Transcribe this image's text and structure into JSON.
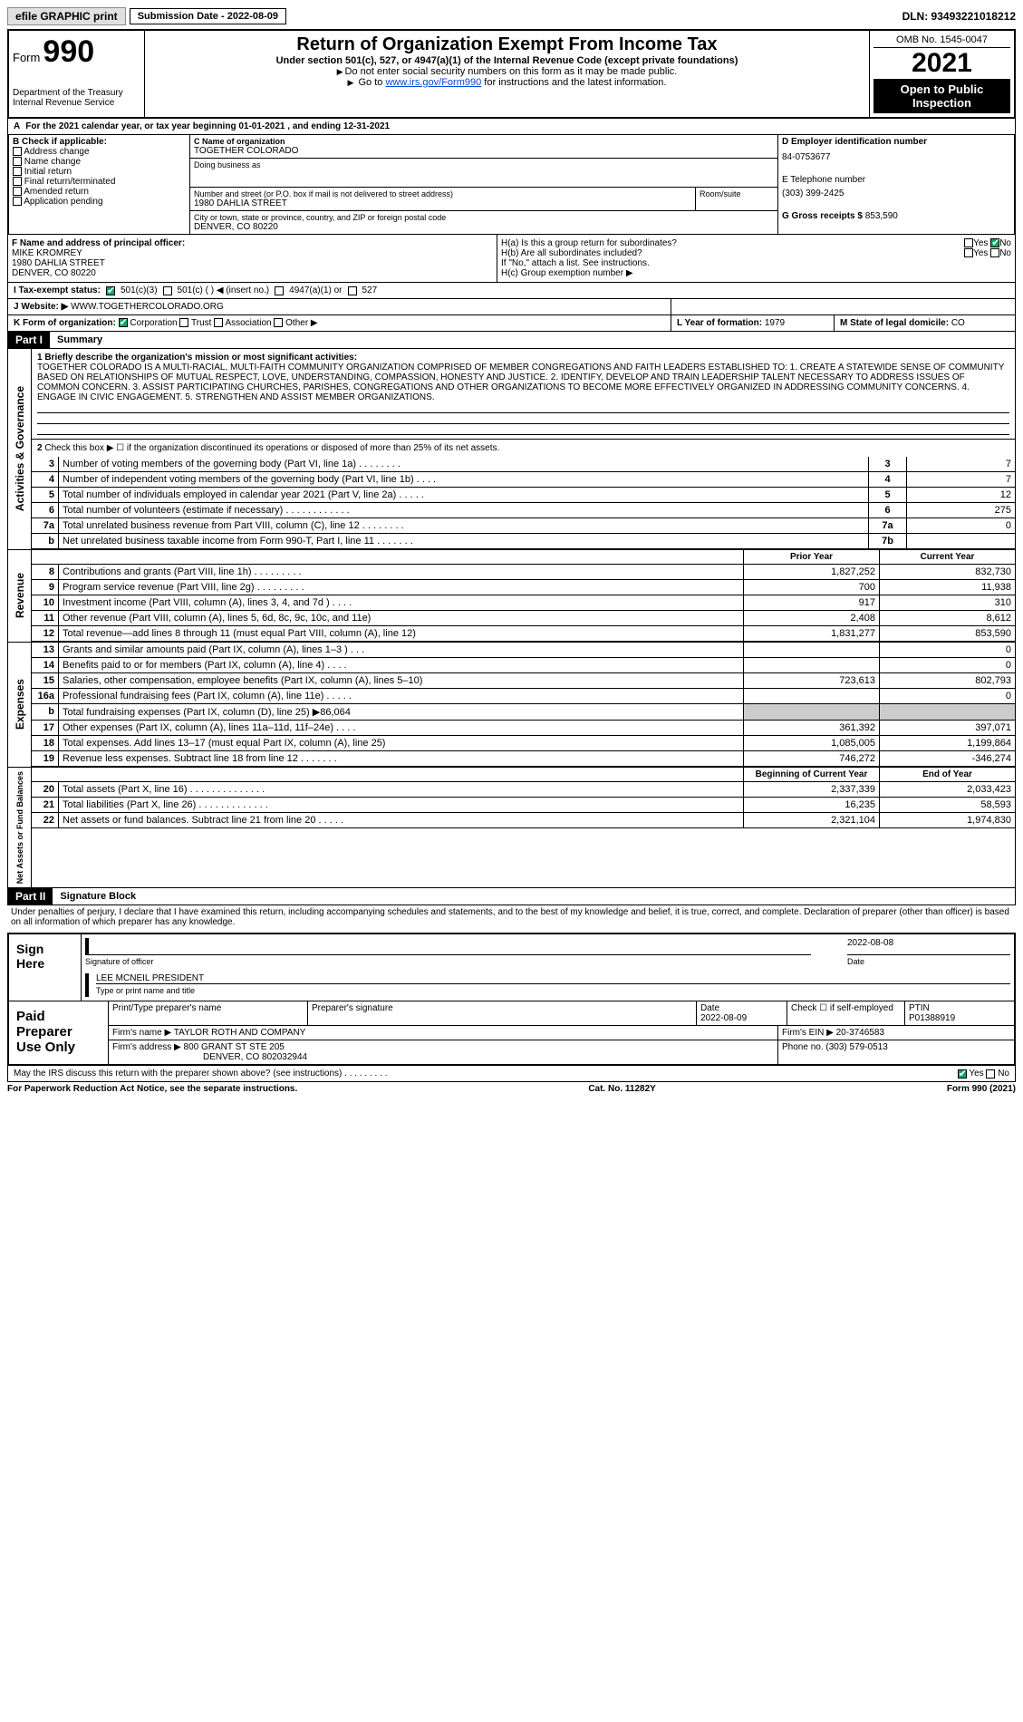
{
  "topbar": {
    "efile": "efile GRAPHIC print",
    "subm_label": "Submission Date - 2022-08-09",
    "dln": "DLN: 93493221018212"
  },
  "header": {
    "form_word": "Form",
    "form_num": "990",
    "dept": "Department of the Treasury",
    "irs": "Internal Revenue Service",
    "title": "Return of Organization Exempt From Income Tax",
    "sub": "Under section 501(c), 527, or 4947(a)(1) of the Internal Revenue Code (except private foundations)",
    "note1": "Do not enter social security numbers on this form as it may be made public.",
    "note2_pre": "Go to ",
    "note2_link": "www.irs.gov/Form990",
    "note2_post": " for instructions and the latest information.",
    "omb": "OMB No. 1545-0047",
    "year": "2021",
    "openpub": "Open to Public Inspection"
  },
  "periodA": "For the 2021 calendar year, or tax year beginning 01-01-2021   , and ending 12-31-2021",
  "boxB": {
    "label": "B Check if applicable:",
    "opts": [
      "Address change",
      "Name change",
      "Initial return",
      "Final return/terminated",
      "Amended return",
      "Application pending"
    ]
  },
  "boxC": {
    "lbl_name": "C Name of organization",
    "org": "TOGETHER COLORADO",
    "dba_lbl": "Doing business as",
    "dba": "",
    "addr_lbl": "Number and street (or P.O. box if mail is not delivered to street address)",
    "room_lbl": "Room/suite",
    "addr": "1980 DAHLIA STREET",
    "city_lbl": "City or town, state or province, country, and ZIP or foreign postal code",
    "city": "DENVER, CO  80220"
  },
  "boxD": {
    "lbl": "D Employer identification number",
    "val": "84-0753677"
  },
  "boxE": {
    "lbl": "E Telephone number",
    "val": "(303) 399-2425"
  },
  "boxG": {
    "lbl": "G Gross receipts $",
    "val": "853,590"
  },
  "boxF": {
    "lbl": "F  Name and address of principal officer:",
    "name": "MIKE KROMREY",
    "l1": "1980 DAHLIA STREET",
    "l2": "DENVER, CO  80220"
  },
  "boxH": {
    "a": "H(a)  Is this a group return for subordinates?",
    "a_yes": "Yes",
    "a_no": "No",
    "b": "H(b)  Are all subordinates included?",
    "b_note": "If \"No,\" attach a list. See instructions.",
    "c": "H(c)  Group exemption number ▶"
  },
  "taxI": {
    "lbl": "I  Tax-exempt status:",
    "o1": "501(c)(3)",
    "o2": "501(c) (   ) ◀ (insert no.)",
    "o3": "4947(a)(1) or",
    "o4": "527"
  },
  "boxJ": {
    "lbl": "J  Website: ▶",
    "val": "WWW.TOGETHERCOLORADO.ORG"
  },
  "boxK": {
    "lbl": "K Form of organization:",
    "o1": "Corporation",
    "o2": "Trust",
    "o3": "Association",
    "o4": "Other ▶"
  },
  "boxL": {
    "lbl": "L Year of formation:",
    "val": "1979"
  },
  "boxM": {
    "lbl": "M State of legal domicile:",
    "val": "CO"
  },
  "part1": {
    "hdr": "Part I",
    "ttl": "Summary"
  },
  "mission": {
    "lbl": "1   Briefly describe the organization's mission or most significant activities:",
    "txt": "TOGETHER COLORADO IS A MULTI-RACIAL, MULTI-FAITH COMMUNITY ORGANIZATION COMPRISED OF MEMBER CONGREGATIONS AND FAITH LEADERS ESTABLISHED TO: 1. CREATE A STATEWIDE SENSE OF COMMUNITY BASED ON RELATIONSHIPS OF MUTUAL RESPECT, LOVE, UNDERSTANDING, COMPASSION, HONESTY AND JUSTICE. 2. IDENTIFY, DEVELOP AND TRAIN LEADERSHIP TALENT NECESSARY TO ADDRESS ISSUES OF COMMON CONCERN. 3. ASSIST PARTICIPATING CHURCHES, PARISHES, CONGREGATIONS AND OTHER ORGANIZATIONS TO BECOME MORE EFFECTIVELY ORGANIZED IN ADDRESSING COMMUNITY CONCERNS. 4. ENGAGE IN CIVIC ENGAGEMENT. 5. STRENGTHEN AND ASSIST MEMBER ORGANIZATIONS."
  },
  "gov": {
    "side": "Activities & Governance",
    "l2": "Check this box ▶ ☐ if the organization discontinued its operations or disposed of more than 25% of its net assets.",
    "rows": [
      {
        "n": "3",
        "t": "Number of voting members of the governing body (Part VI, line 1a)   .    .    .    .    .    .    .    .",
        "b": "3",
        "v": "7"
      },
      {
        "n": "4",
        "t": "Number of independent voting members of the governing body (Part VI, line 1b)   .    .    .    .",
        "b": "4",
        "v": "7"
      },
      {
        "n": "5",
        "t": "Total number of individuals employed in calendar year 2021 (Part V, line 2a)   .    .    .    .    .",
        "b": "5",
        "v": "12"
      },
      {
        "n": "6",
        "t": "Total number of volunteers (estimate if necessary)   .    .    .    .    .    .    .    .    .    .    .    .",
        "b": "6",
        "v": "275"
      },
      {
        "n": "7a",
        "t": "Total unrelated business revenue from Part VIII, column (C), line 12   .    .    .    .    .    .    .    .",
        "b": "7a",
        "v": "0"
      },
      {
        "n": "b",
        "t": "Net unrelated business taxable income from Form 990-T, Part I, line 11   .    .    .    .    .    .    .",
        "b": "7b",
        "v": ""
      }
    ]
  },
  "colhdr": {
    "py": "Prior Year",
    "cy": "Current Year"
  },
  "rev": {
    "side": "Revenue",
    "rows": [
      {
        "n": "8",
        "t": "Contributions and grants (Part VIII, line 1h)   .    .    .    .    .    .    .    .    .",
        "py": "1,827,252",
        "cy": "832,730"
      },
      {
        "n": "9",
        "t": "Program service revenue (Part VIII, line 2g)   .    .    .    .    .    .    .    .    .",
        "py": "700",
        "cy": "11,938"
      },
      {
        "n": "10",
        "t": "Investment income (Part VIII, column (A), lines 3, 4, and 7d )    .    .    .    .",
        "py": "917",
        "cy": "310"
      },
      {
        "n": "11",
        "t": "Other revenue (Part VIII, column (A), lines 5, 6d, 8c, 9c, 10c, and 11e)",
        "py": "2,408",
        "cy": "8,612"
      },
      {
        "n": "12",
        "t": "Total revenue—add lines 8 through 11 (must equal Part VIII, column (A), line 12)",
        "py": "1,831,277",
        "cy": "853,590"
      }
    ]
  },
  "exp": {
    "side": "Expenses",
    "rows": [
      {
        "n": "13",
        "t": "Grants and similar amounts paid (Part IX, column (A), lines 1–3 )   .    .    .",
        "py": "",
        "cy": "0"
      },
      {
        "n": "14",
        "t": "Benefits paid to or for members (Part IX, column (A), line 4)   .    .    .    .",
        "py": "",
        "cy": "0"
      },
      {
        "n": "15",
        "t": "Salaries, other compensation, employee benefits (Part IX, column (A), lines 5–10)",
        "py": "723,613",
        "cy": "802,793"
      },
      {
        "n": "16a",
        "t": "Professional fundraising fees (Part IX, column (A), line 11e)   .    .    .    .    .",
        "py": "",
        "cy": "0"
      },
      {
        "n": "b",
        "t": "Total fundraising expenses (Part IX, column (D), line 25) ▶86,064",
        "py": "—grey—",
        "cy": "—grey—"
      },
      {
        "n": "17",
        "t": "Other expenses (Part IX, column (A), lines 11a–11d, 11f–24e)   .    .    .    .",
        "py": "361,392",
        "cy": "397,071"
      },
      {
        "n": "18",
        "t": "Total expenses. Add lines 13–17 (must equal Part IX, column (A), line 25)",
        "py": "1,085,005",
        "cy": "1,199,864"
      },
      {
        "n": "19",
        "t": "Revenue less expenses. Subtract line 18 from line 12   .    .    .    .    .    .    .",
        "py": "746,272",
        "cy": "-346,274"
      }
    ]
  },
  "colhdr2": {
    "py": "Beginning of Current Year",
    "cy": "End of Year"
  },
  "net": {
    "side": "Net Assets or Fund Balances",
    "rows": [
      {
        "n": "20",
        "t": "Total assets (Part X, line 16)   .    .    .    .    .    .    .    .    .    .    .    .    .    .",
        "py": "2,337,339",
        "cy": "2,033,423"
      },
      {
        "n": "21",
        "t": "Total liabilities (Part X, line 26)   .    .    .    .    .    .    .    .    .    .    .    .    .",
        "py": "16,235",
        "cy": "58,593"
      },
      {
        "n": "22",
        "t": "Net assets or fund balances. Subtract line 21 from line 20   .    .    .    .    .",
        "py": "2,321,104",
        "cy": "1,974,830"
      }
    ]
  },
  "part2": {
    "hdr": "Part II",
    "ttl": "Signature Block"
  },
  "penalty": "Under penalties of perjury, I declare that I have examined this return, including accompanying schedules and statements, and to the best of my knowledge and belief, it is true, correct, and complete. Declaration of preparer (other than officer) is based on all information of which preparer has any knowledge.",
  "sign": {
    "side": "Sign Here",
    "sig_lbl": "Signature of officer",
    "date_lbl": "Date",
    "date": "2022-08-08",
    "name": "LEE MCNEIL PRESIDENT",
    "name_lbl": "Type or print name and title"
  },
  "paid": {
    "side": "Paid Preparer Use Only",
    "h1": "Print/Type preparer's name",
    "h2": "Preparer's signature",
    "h3": "Date",
    "h3v": "2022-08-09",
    "h4": "Check ☐ if self-employed",
    "h5": "PTIN",
    "h5v": "P01388919",
    "firm_lbl": "Firm's name    ▶",
    "firm": "TAYLOR ROTH AND COMPANY",
    "ein_lbl": "Firm's EIN ▶",
    "ein": "20-3746583",
    "addr_lbl": "Firm's address ▶",
    "addr1": "800 GRANT ST STE 205",
    "addr2": "DENVER, CO  802032944",
    "phone_lbl": "Phone no.",
    "phone": "(303) 579-0513"
  },
  "discuss": {
    "q": "May the IRS discuss this return with the preparer shown above? (see instructions)   .    .    .    .    .    .    .    .    .",
    "yes": "Yes",
    "no": "No"
  },
  "footer": {
    "l": "For Paperwork Reduction Act Notice, see the separate instructions.",
    "c": "Cat. No. 11282Y",
    "r": "Form 990 (2021)"
  }
}
